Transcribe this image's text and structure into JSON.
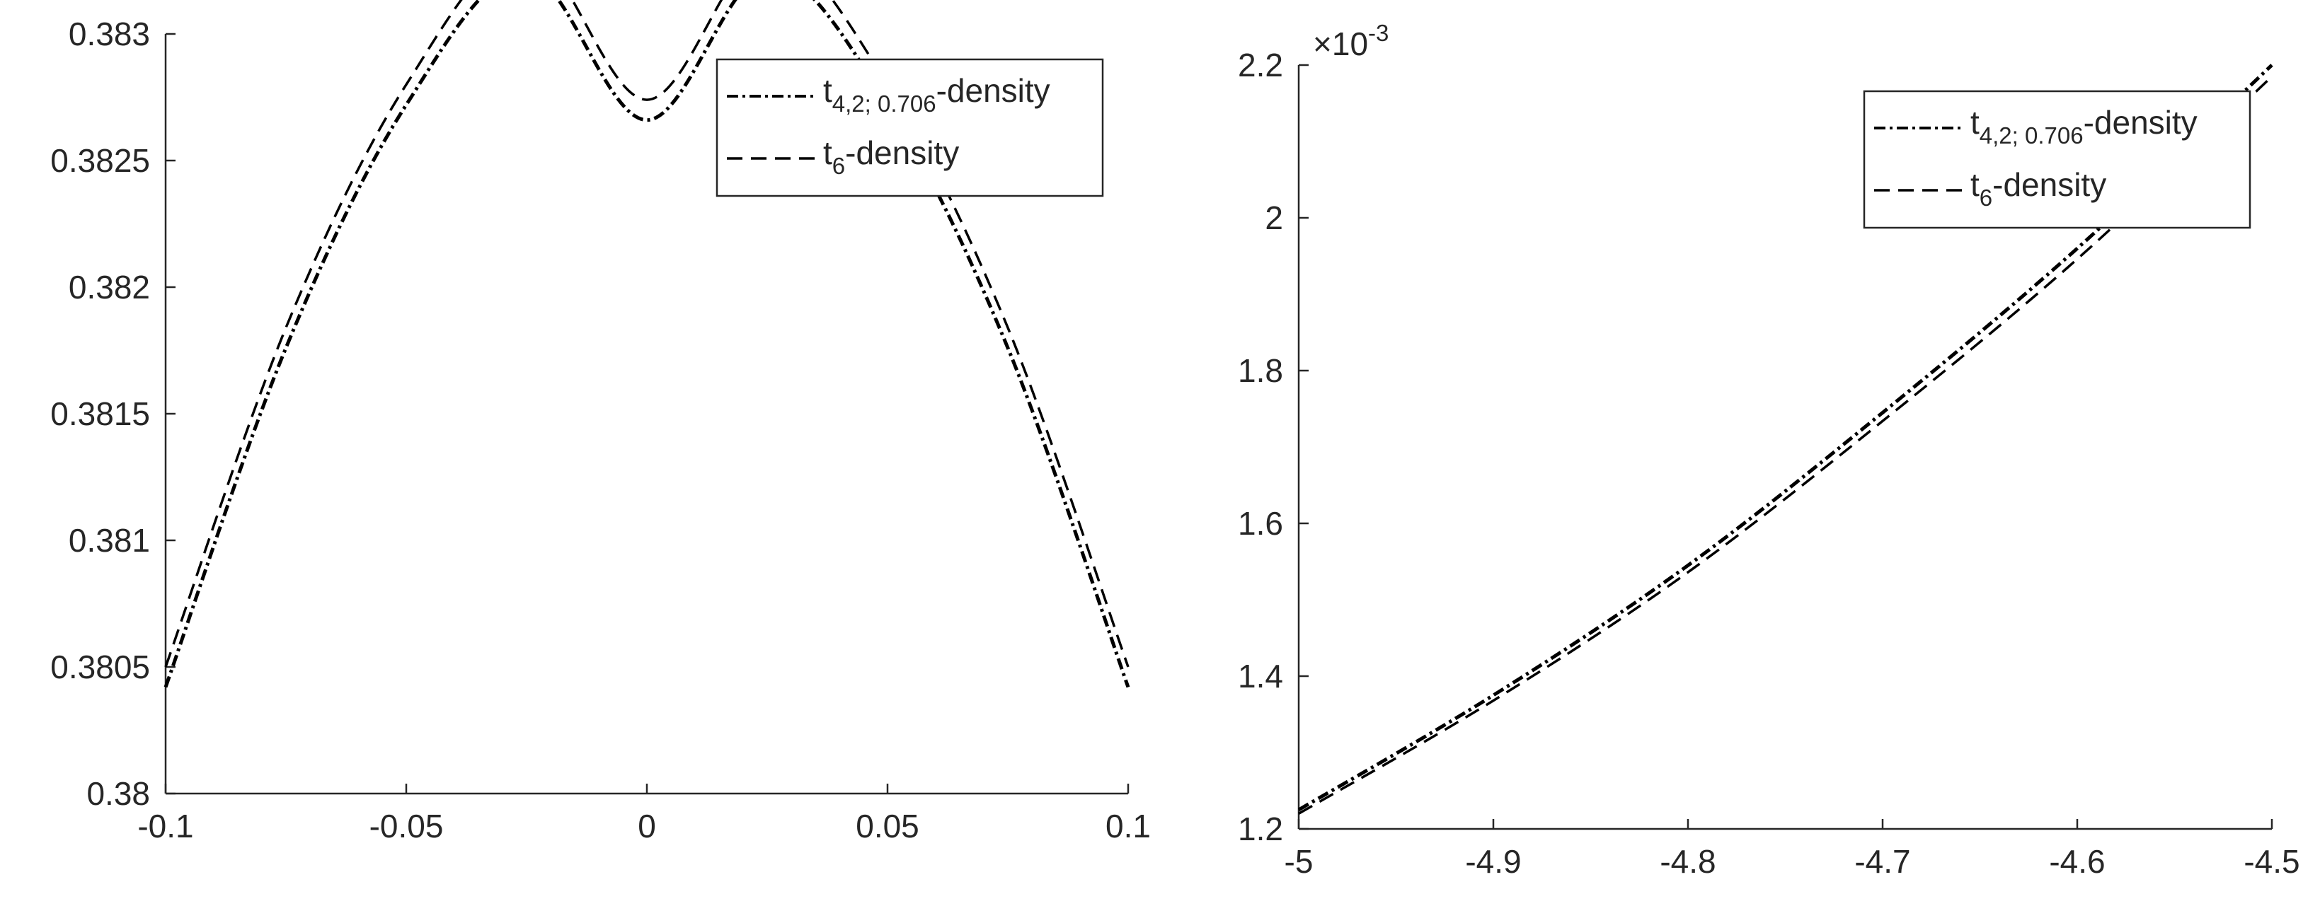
{
  "chart_data": [
    {
      "type": "line",
      "title": "",
      "xlabel": "",
      "ylabel": "",
      "xlim": [
        -0.1,
        0.1
      ],
      "ylim": [
        0.38,
        0.383
      ],
      "xticks": [
        "-0.1",
        "-0.05",
        "0",
        "0.05",
        "0.1"
      ],
      "yticks": [
        "0.38",
        "0.3805",
        "0.381",
        "0.3815",
        "0.382",
        "0.3825",
        "0.383"
      ],
      "grid": false,
      "legend_position": "top-right",
      "series": [
        {
          "name": "t4,2; 0.706-density",
          "legend_main": "t",
          "legend_sub": "4,2; 0.706",
          "legend_tail": "-density",
          "style": "dash-dot",
          "color": "#000000",
          "x": [
            -0.1,
            -0.075,
            -0.05,
            -0.025,
            0,
            0.025,
            0.05,
            0.075,
            0.1
          ],
          "y": [
            0.38042,
            0.38176,
            0.38272,
            0.38324,
            0.38266,
            0.38324,
            0.38272,
            0.38176,
            0.38042
          ]
        },
        {
          "name": "t6-density",
          "legend_main": "t",
          "legend_sub": "6",
          "legend_tail": "-density",
          "style": "dashed",
          "color": "#000000",
          "x": [
            -0.1,
            -0.075,
            -0.05,
            -0.025,
            0,
            0.025,
            0.05,
            0.075,
            0.1
          ],
          "y": [
            0.3805,
            0.38184,
            0.3828,
            0.38333,
            0.38274,
            0.38333,
            0.3828,
            0.38184,
            0.3805
          ]
        }
      ]
    },
    {
      "type": "line",
      "title": "",
      "xlabel": "",
      "ylabel": "",
      "xlim": [
        -5,
        -4.5
      ],
      "ylim": [
        1.2,
        2.2
      ],
      "y_exponent_base": "×10",
      "y_exponent_power": "-3",
      "xticks": [
        "-5",
        "-4.9",
        "-4.8",
        "-4.7",
        "-4.6",
        "-4.5"
      ],
      "yticks": [
        "1.2",
        "1.4",
        "1.6",
        "1.8",
        "2",
        "2.2"
      ],
      "grid": false,
      "legend_position": "top-right",
      "series": [
        {
          "name": "t4,2; 0.706-density",
          "legend_main": "t",
          "legend_sub": "4,2; 0.706",
          "legend_tail": "-density",
          "style": "dash-dot",
          "color": "#000000",
          "x": [
            -5,
            -4.9,
            -4.8,
            -4.7,
            -4.6,
            -4.5
          ],
          "y": [
            1.225,
            1.375,
            1.545,
            1.745,
            1.96,
            2.2
          ]
        },
        {
          "name": "t6-density",
          "legend_main": "t",
          "legend_sub": "6",
          "legend_tail": "-density",
          "style": "dashed",
          "color": "#000000",
          "x": [
            -5,
            -4.9,
            -4.8,
            -4.7,
            -4.6,
            -4.5
          ],
          "y": [
            1.22,
            1.368,
            1.536,
            1.734,
            1.946,
            2.185
          ]
        }
      ]
    }
  ]
}
